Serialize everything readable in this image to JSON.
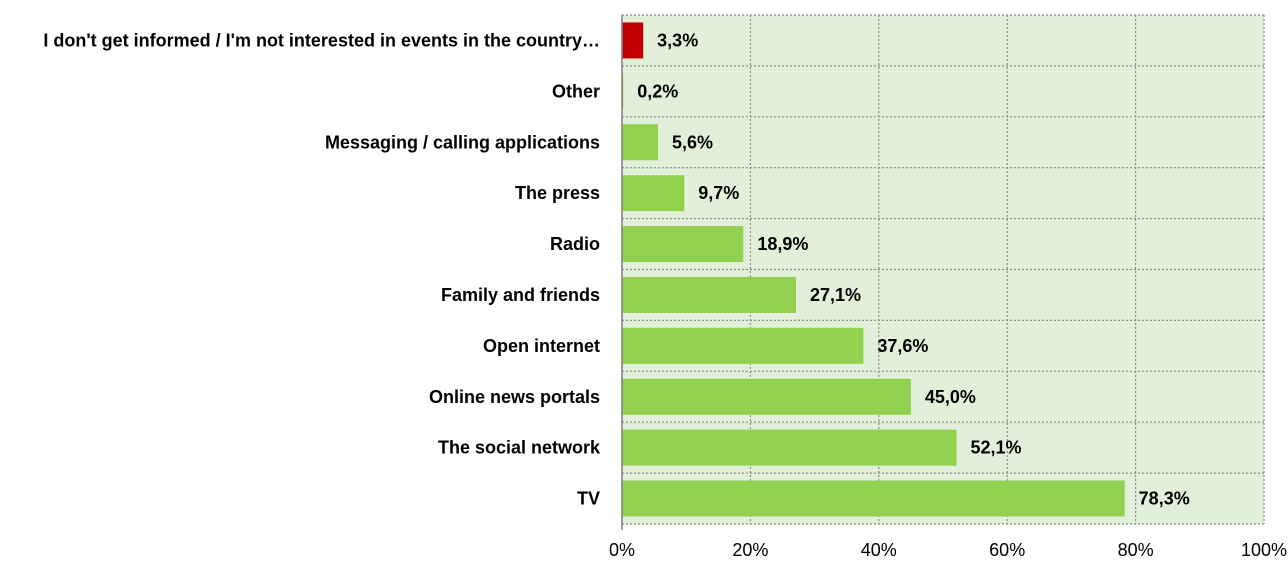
{
  "chart_data": {
    "type": "bar",
    "orientation": "horizontal",
    "categories": [
      "I don't get informed / I'm not interested in events in the country…",
      "Other",
      "Messaging / calling applications",
      "The press",
      "Radio",
      "Family and friends",
      "Open internet",
      "Online news portals",
      "The social network",
      "TV"
    ],
    "values": [
      3.3,
      0.2,
      5.6,
      9.7,
      18.9,
      27.1,
      37.6,
      45.0,
      52.1,
      78.3
    ],
    "value_labels": [
      "3,3%",
      "0,2%",
      "5,6%",
      "9,7%",
      "18,9%",
      "27,1%",
      "37,6%",
      "45,0%",
      "52,1%",
      "78,3%"
    ],
    "bar_colors": [
      "#c00000",
      "#92d050",
      "#92d050",
      "#92d050",
      "#92d050",
      "#92d050",
      "#92d050",
      "#92d050",
      "#92d050",
      "#92d050"
    ],
    "xlim": [
      0,
      100
    ],
    "x_ticks": [
      0,
      20,
      40,
      60,
      80,
      100
    ],
    "x_tick_labels": [
      "0%",
      "20%",
      "40%",
      "60%",
      "80%",
      "100%"
    ],
    "plot_background": "#e2f0d9",
    "grid": true,
    "title": "",
    "xlabel": "",
    "ylabel": ""
  }
}
